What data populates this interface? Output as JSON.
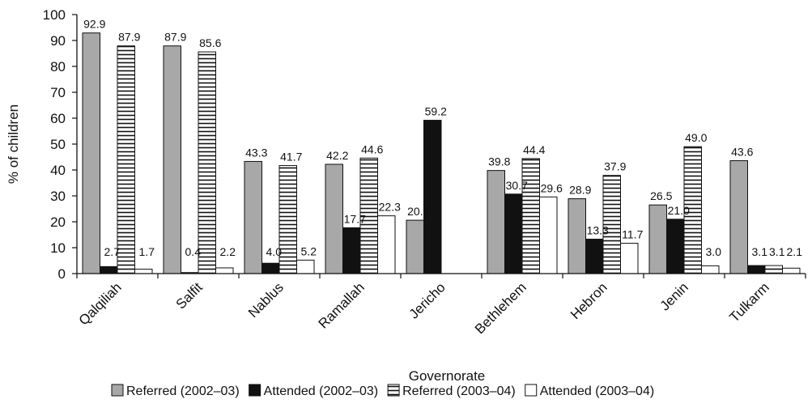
{
  "chart_data": {
    "type": "bar",
    "title": "",
    "xlabel": "Governorate",
    "ylabel": "% of children",
    "ylim": [
      0,
      100
    ],
    "yticks": [
      0,
      10,
      20,
      30,
      40,
      50,
      60,
      70,
      80,
      90,
      100
    ],
    "grid": false,
    "legend_position": "bottom",
    "categories": [
      "Qalqiliah",
      "Salfit",
      "Nablus",
      "Ramallah",
      "Jericho",
      "Bethlehem",
      "Hebron",
      "Jenin",
      "Tulkarm"
    ],
    "series": [
      {
        "name": "Referred (2002–03)",
        "style": "gray",
        "color": "#a8a8a8",
        "values": [
          92.9,
          87.9,
          43.3,
          42.2,
          20.6,
          39.8,
          28.9,
          26.5,
          43.6
        ],
        "labels": [
          "92.9",
          "87.9",
          "43.3",
          "42.2",
          "20.6",
          "39.8",
          "28.9",
          "26.5",
          "43.6"
        ]
      },
      {
        "name": "Attended (2002–03)",
        "style": "black",
        "color": "#111111",
        "values": [
          2.7,
          0.4,
          4.0,
          17.7,
          59.2,
          30.7,
          13.3,
          21.0,
          3.1
        ],
        "labels": [
          "2.7",
          "0.4",
          "4.0",
          "17.7",
          "59.2",
          "30.7",
          "13.3",
          "21.0",
          "3.1"
        ]
      },
      {
        "name": "Referred (2003–04)",
        "style": "striped",
        "color": "#111111",
        "values": [
          87.9,
          85.6,
          41.7,
          44.6,
          null,
          44.4,
          37.9,
          49.0,
          3.1
        ],
        "labels": [
          "87.9",
          "85.6",
          "41.7",
          "44.6",
          "",
          "44.4",
          "37.9",
          "49.0",
          "3.1"
        ]
      },
      {
        "name": "Attended (2003–04)",
        "style": "white",
        "color": "#ffffff",
        "values": [
          1.7,
          2.2,
          5.2,
          22.3,
          null,
          29.6,
          11.7,
          3.0,
          2.1
        ],
        "labels": [
          "1.7",
          "2.2",
          "5.2",
          "22.3",
          "",
          "29.6",
          "11.7",
          "3.0",
          "2.1"
        ]
      }
    ]
  }
}
